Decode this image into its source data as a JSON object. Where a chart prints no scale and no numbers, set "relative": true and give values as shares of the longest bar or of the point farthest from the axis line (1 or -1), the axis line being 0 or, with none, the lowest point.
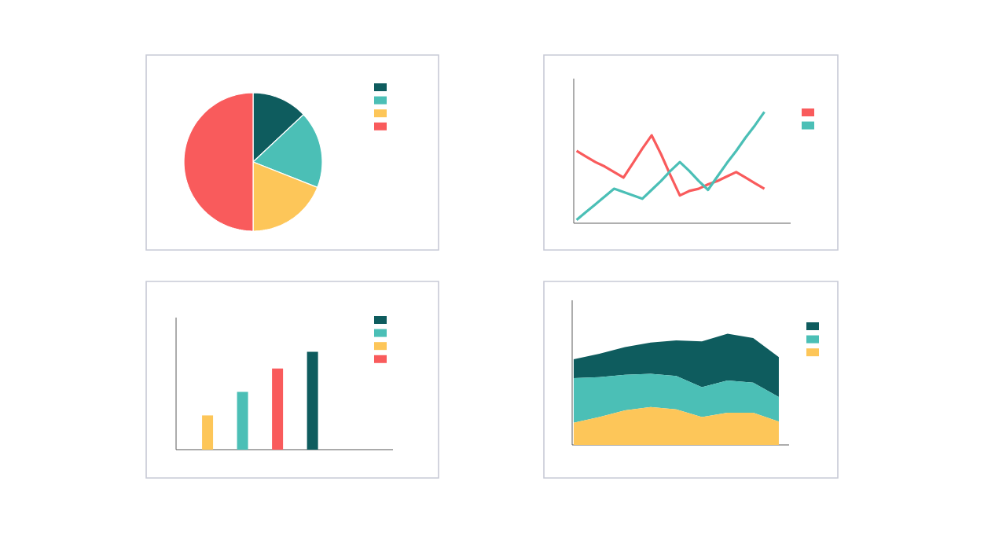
{
  "chart_data": [
    {
      "type": "pie",
      "categories": [
        null,
        null,
        null,
        null
      ],
      "values": [
        13,
        18,
        19,
        50
      ],
      "colors": [
        "#0e5c5e",
        "#4bbfb6",
        "#fdc659",
        "#f95b5c"
      ]
    },
    {
      "type": "line",
      "relative": true,
      "categories": [
        null,
        null,
        null,
        null,
        null,
        null,
        null,
        null,
        null,
        null,
        null,
        null,
        null,
        null,
        null,
        null,
        null,
        null,
        null,
        null,
        null
      ],
      "series": [
        {
          "color": "#f95b5c",
          "values": [
            0.65,
            0.6,
            0.55,
            0.51,
            0.46,
            0.41,
            0.54,
            0.67,
            0.79,
            0.62,
            0.43,
            0.25,
            0.29,
            0.31,
            0.35,
            0.38,
            0.42,
            0.46,
            0.41,
            0.36,
            0.31
          ]
        },
        {
          "color": "#4bbfb6",
          "values": [
            0.03,
            0.1,
            0.17,
            0.24,
            0.31,
            0.28,
            0.25,
            0.22,
            0.3,
            0.38,
            0.47,
            0.55,
            0.47,
            0.38,
            0.3,
            0.42,
            0.54,
            0.65,
            0.77,
            0.88,
            1.0
          ]
        }
      ]
    },
    {
      "type": "bar",
      "relative": true,
      "categories": [
        null,
        null,
        null,
        null
      ],
      "values": [
        0.35,
        0.59,
        0.83,
        1.0
      ],
      "colors": [
        "#fdc659",
        "#4bbfb6",
        "#f95b5c",
        "#0e5c5e"
      ]
    },
    {
      "type": "area",
      "relative": true,
      "stacked": true,
      "categories": [
        null,
        null,
        null,
        null,
        null,
        null,
        null,
        null,
        null
      ],
      "series": [
        {
          "color": "#fdc659",
          "values": [
            0.2,
            0.25,
            0.31,
            0.34,
            0.32,
            0.25,
            0.29,
            0.29,
            0.21
          ]
        },
        {
          "color": "#4bbfb6",
          "values": [
            0.4,
            0.36,
            0.32,
            0.3,
            0.3,
            0.27,
            0.29,
            0.27,
            0.22
          ]
        },
        {
          "color": "#0e5c5e",
          "values": [
            0.17,
            0.21,
            0.25,
            0.28,
            0.32,
            0.41,
            0.42,
            0.4,
            0.36
          ]
        }
      ]
    }
  ]
}
